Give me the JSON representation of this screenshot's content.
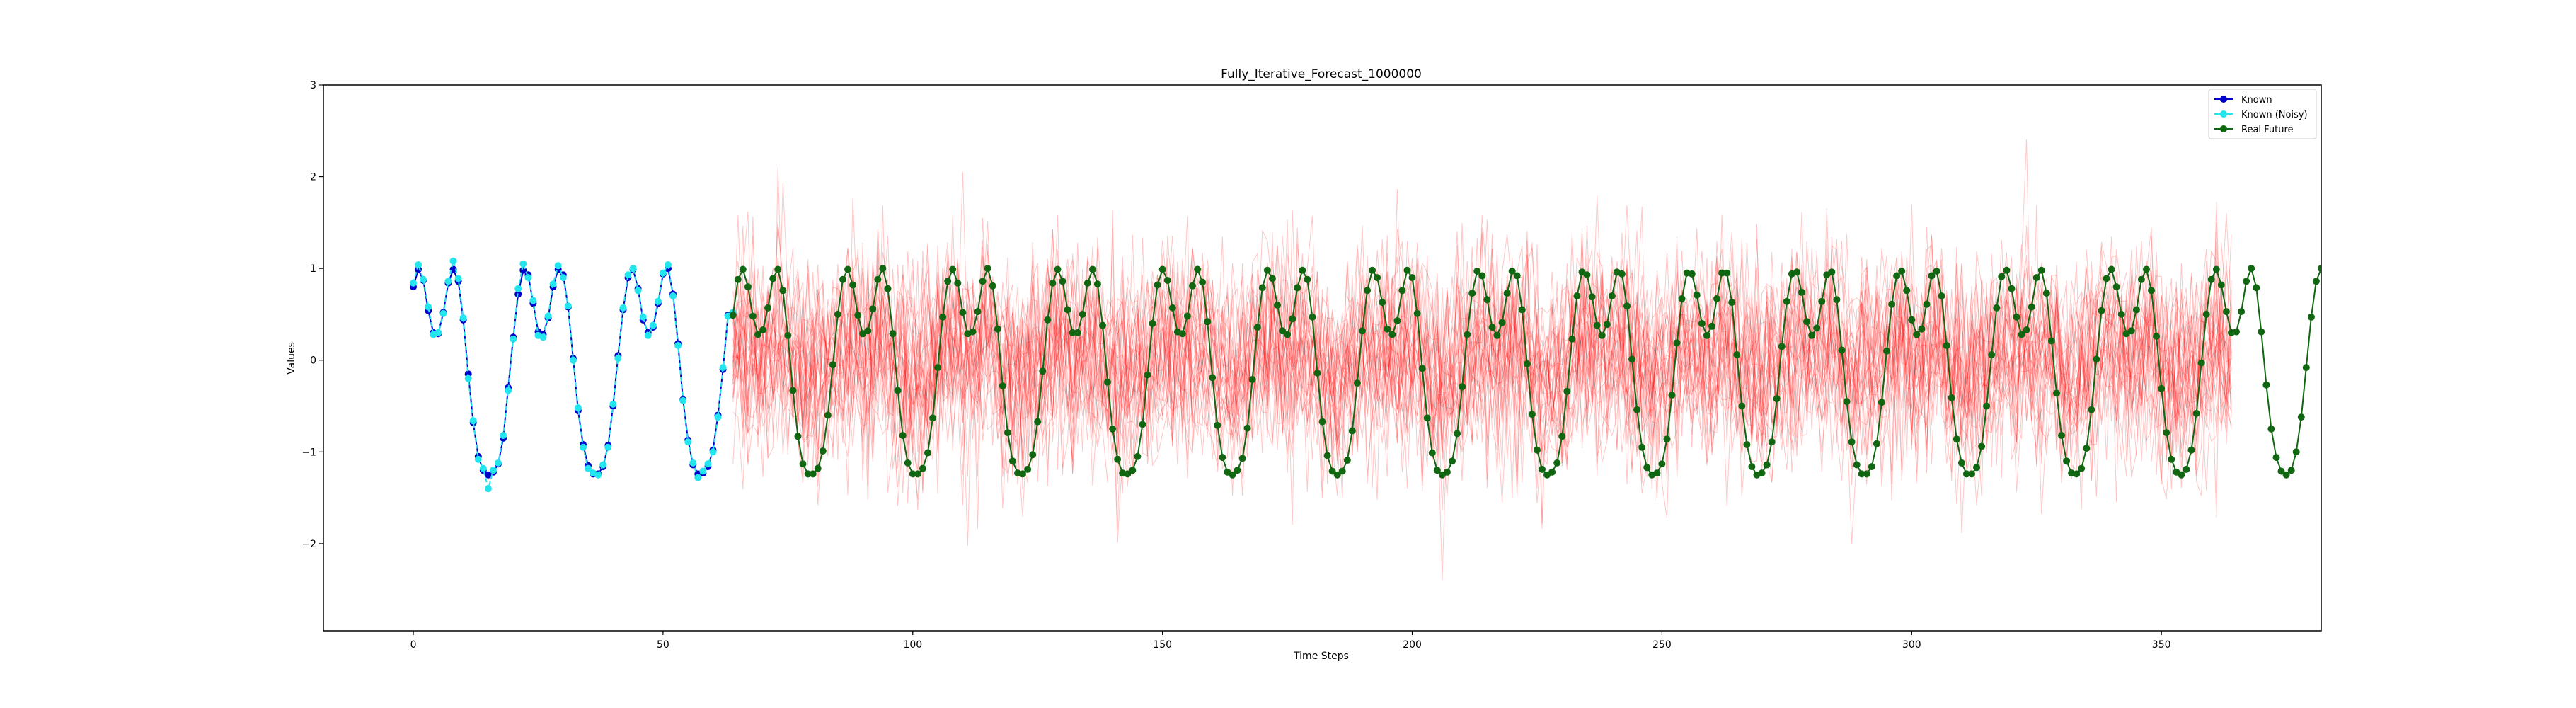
{
  "chart_data": {
    "type": "line",
    "title": "Fully_Iterative_Forecast_1000000",
    "xlabel": "Time Steps",
    "ylabel": "Values",
    "xlim": [
      -18,
      382
    ],
    "ylim": [
      -2.95,
      3.0
    ],
    "xticks": [
      0,
      50,
      100,
      150,
      200,
      250,
      300,
      350
    ],
    "yticks": [
      -2,
      -1,
      0,
      1,
      2,
      3
    ],
    "ytick_labels": [
      "−2",
      "−1",
      "0",
      "1",
      "2",
      "3"
    ],
    "grid": false,
    "legend_position": "top-right",
    "series": [
      {
        "name": "Known",
        "color": "#0000cc",
        "marker": "circle",
        "x_start": 0,
        "x_step": 1,
        "values": [
          0.8,
          0.99,
          0.87,
          0.54,
          0.3,
          0.29,
          0.52,
          0.84,
          0.99,
          0.86,
          0.44,
          -0.15,
          -0.68,
          -1.05,
          -1.2,
          -1.25,
          -1.22,
          -1.13,
          -0.85,
          -0.3,
          0.25,
          0.72,
          0.98,
          0.93,
          0.62,
          0.31,
          0.28,
          0.46,
          0.8,
          0.99,
          0.93,
          0.58,
          0.02,
          -0.55,
          -0.92,
          -1.15,
          -1.24,
          -1.24,
          -1.16,
          -0.93,
          -0.5,
          0.05,
          0.55,
          0.9,
          0.99,
          0.78,
          0.44,
          0.3,
          0.36,
          0.62,
          0.94,
          1.0,
          0.72,
          0.18,
          -0.43,
          -0.87,
          -1.14,
          -1.24,
          -1.23,
          -1.16,
          -0.98,
          -0.6,
          -0.1,
          0.49,
          0.5
        ]
      },
      {
        "name": "Known (Noisy)",
        "color": "#22e5ee",
        "marker": "circle",
        "x_start": 0,
        "x_step": 1,
        "values": [
          0.84,
          1.04,
          0.88,
          0.58,
          0.28,
          0.3,
          0.51,
          0.86,
          1.08,
          0.89,
          0.46,
          -0.2,
          -0.66,
          -1.08,
          -1.18,
          -1.4,
          -1.2,
          -1.12,
          -0.82,
          -0.33,
          0.23,
          0.78,
          1.05,
          0.9,
          0.65,
          0.27,
          0.25,
          0.48,
          0.83,
          1.03,
          0.9,
          0.59,
          0.0,
          -0.52,
          -0.95,
          -1.18,
          -1.23,
          -1.25,
          -1.14,
          -0.95,
          -0.48,
          0.02,
          0.57,
          0.93,
          1.0,
          0.76,
          0.47,
          0.27,
          0.38,
          0.64,
          0.95,
          1.04,
          0.7,
          0.16,
          -0.44,
          -0.89,
          -1.12,
          -1.28,
          -1.21,
          -1.13,
          -1.0,
          -0.62,
          -0.08,
          0.48,
          0.52
        ]
      },
      {
        "name": "Real Future",
        "color": "#116611",
        "marker": "circle",
        "x_start": 64,
        "x_step": 1,
        "values": [
          0.49,
          0.88,
          0.99,
          0.8,
          0.48,
          0.28,
          0.33,
          0.57,
          0.89,
          0.99,
          0.76,
          0.27,
          -0.33,
          -0.83,
          -1.13,
          -1.24,
          -1.24,
          -1.18,
          -0.99,
          -0.6,
          -0.05,
          0.5,
          0.88,
          0.99,
          0.82,
          0.49,
          0.29,
          0.32,
          0.56,
          0.88,
          1.0,
          0.78,
          0.29,
          -0.33,
          -0.82,
          -1.12,
          -1.24,
          -1.24,
          -1.18,
          -1.01,
          -0.63,
          -0.08,
          0.47,
          0.86,
          0.99,
          0.84,
          0.52,
          0.29,
          0.31,
          0.53,
          0.86,
          1.0,
          0.81,
          0.34,
          -0.28,
          -0.79,
          -1.1,
          -1.23,
          -1.24,
          -1.19,
          -1.03,
          -0.67,
          -0.12,
          0.44,
          0.84,
          0.99,
          0.86,
          0.55,
          0.3,
          0.3,
          0.5,
          0.84,
          0.99,
          0.83,
          0.38,
          -0.24,
          -0.75,
          -1.08,
          -1.23,
          -1.24,
          -1.2,
          -1.05,
          -0.7,
          -0.16,
          0.4,
          0.82,
          0.99,
          0.87,
          0.57,
          0.31,
          0.29,
          0.48,
          0.81,
          0.99,
          0.85,
          0.42,
          -0.19,
          -0.71,
          -1.06,
          -1.22,
          -1.25,
          -1.2,
          -1.07,
          -0.74,
          -0.21,
          0.36,
          0.79,
          0.98,
          0.89,
          0.6,
          0.32,
          0.28,
          0.45,
          0.79,
          0.98,
          0.88,
          0.47,
          -0.14,
          -0.67,
          -1.04,
          -1.21,
          -1.25,
          -1.21,
          -1.09,
          -0.77,
          -0.25,
          0.32,
          0.76,
          0.98,
          0.9,
          0.63,
          0.34,
          0.28,
          0.43,
          0.76,
          0.98,
          0.9,
          0.51,
          -0.09,
          -0.63,
          -1.01,
          -1.2,
          -1.25,
          -1.22,
          -1.1,
          -0.8,
          -0.29,
          0.28,
          0.73,
          0.97,
          0.92,
          0.66,
          0.36,
          0.27,
          0.41,
          0.73,
          0.97,
          0.92,
          0.55,
          -0.04,
          -0.59,
          -0.98,
          -1.19,
          -1.25,
          -1.22,
          -1.12,
          -0.83,
          -0.34,
          0.23,
          0.7,
          0.96,
          0.93,
          0.69,
          0.38,
          0.27,
          0.39,
          0.7,
          0.96,
          0.94,
          0.59,
          0.01,
          -0.54,
          -0.95,
          -1.17,
          -1.25,
          -1.23,
          -1.13,
          -0.86,
          -0.38,
          0.19,
          0.67,
          0.95,
          0.94,
          0.71,
          0.4,
          0.27,
          0.37,
          0.67,
          0.95,
          0.95,
          0.63,
          0.06,
          -0.5,
          -0.92,
          -1.16,
          -1.25,
          -1.23,
          -1.14,
          -0.89,
          -0.42,
          0.15,
          0.64,
          0.94,
          0.96,
          0.74,
          0.42,
          0.27,
          0.35,
          0.64,
          0.93,
          0.96,
          0.66,
          0.11,
          -0.45,
          -0.89,
          -1.14,
          -1.24,
          -1.24,
          -1.16,
          -0.91,
          -0.46,
          0.1,
          0.61,
          0.92,
          0.97,
          0.76,
          0.44,
          0.28,
          0.34,
          0.61,
          0.92,
          0.97,
          0.7,
          0.16,
          -0.41,
          -0.86,
          -1.12,
          -1.24,
          -1.24,
          -1.17,
          -0.94,
          -0.5,
          0.06,
          0.57,
          0.91,
          0.98,
          0.78,
          0.47,
          0.28,
          0.33,
          0.58,
          0.9,
          0.98,
          0.73,
          0.21,
          -0.36,
          -0.82,
          -1.1,
          -1.23,
          -1.24,
          -1.18,
          -0.96,
          -0.54,
          0.01,
          0.54,
          0.89,
          0.99,
          0.8,
          0.5,
          0.29,
          0.32,
          0.55,
          0.88,
          0.99,
          0.76,
          0.26,
          -0.31,
          -0.79,
          -1.08,
          -1.22,
          -1.25,
          -1.19,
          -0.98,
          -0.58,
          -0.03,
          0.5,
          0.88,
          0.99,
          0.82,
          0.53,
          0.3,
          0.31,
          0.53,
          0.86,
          1.0,
          0.79,
          0.31,
          -0.27,
          -0.75,
          -1.06,
          -1.21,
          -1.25,
          -1.2,
          -1.0,
          -0.62,
          -0.08,
          0.47,
          0.86,
          1.0,
          0.92
        ]
      },
      {
        "name": "",
        "color": "#ff0000",
        "description_role": "forecast-samples",
        "x_range": [
          64,
          364
        ],
        "center_amplitude": 0.9,
        "spread_sd": 0.55,
        "samples": 30
      }
    ],
    "legend": [
      "Known",
      "Known (Noisy)",
      "Real Future"
    ]
  }
}
